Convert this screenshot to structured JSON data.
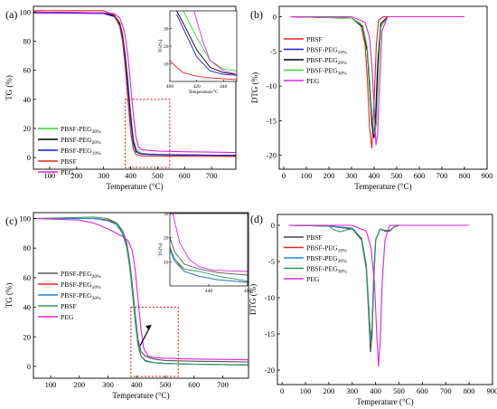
{
  "chart_data": [
    {
      "type": "line",
      "panel_label": "(a)",
      "xlabel": "Temperature (°C)",
      "ylabel": "TG (%)",
      "xlim": [
        40,
        790
      ],
      "ylim": [
        -8,
        104
      ],
      "xticks": [
        100,
        200,
        300,
        400,
        500,
        600,
        700
      ],
      "yticks": [
        0,
        20,
        40,
        60,
        80,
        100
      ],
      "legend_position": "left-middle",
      "series": [
        {
          "name": "PBSF-PEG30%",
          "color": "#33d633",
          "x": [
            40,
            300,
            340,
            360,
            370,
            380,
            390,
            400,
            410,
            420,
            430,
            440,
            460,
            500,
            600,
            790
          ],
          "y": [
            100,
            99.5,
            98,
            93,
            85,
            72,
            54,
            32,
            14,
            6,
            4,
            3,
            2.5,
            2.2,
            1.8,
            1.5
          ]
        },
        {
          "name": "PBSF-PEG20%",
          "color": "#000000",
          "x": [
            40,
            300,
            340,
            360,
            370,
            380,
            390,
            400,
            410,
            420,
            430,
            440,
            460,
            500,
            600,
            790
          ],
          "y": [
            100,
            99.5,
            97.5,
            92,
            84,
            70,
            50,
            28,
            11,
            4.5,
            3,
            2.5,
            2.2,
            2.0,
            1.8,
            1.5
          ]
        },
        {
          "name": "PBSF-PEG10%",
          "color": "#1a1ad9",
          "x": [
            40,
            300,
            340,
            360,
            370,
            380,
            390,
            400,
            410,
            420,
            430,
            440,
            460,
            500,
            600,
            790
          ],
          "y": [
            99.5,
            99,
            97,
            91,
            83,
            68,
            48,
            26,
            10,
            4,
            3,
            2.5,
            2.2,
            2.0,
            1.8,
            1.5
          ]
        },
        {
          "name": "PBSF",
          "color": "#e52222",
          "x": [
            40,
            300,
            340,
            360,
            370,
            380,
            390,
            400,
            410,
            420,
            440,
            460,
            500,
            600,
            790
          ],
          "y": [
            101,
            101,
            98,
            90,
            80,
            63,
            40,
            18,
            6,
            2,
            1.2,
            1.0,
            1.0,
            0.9,
            0.8
          ]
        },
        {
          "name": "PEG",
          "color": "#e020e0",
          "x": [
            40,
            300,
            340,
            360,
            370,
            380,
            390,
            400,
            410,
            420,
            430,
            440,
            460,
            500,
            600,
            790
          ],
          "y": [
            100,
            99.5,
            99,
            96,
            91,
            84,
            70,
            50,
            30,
            14,
            7,
            5.5,
            5,
            4.5,
            4,
            3.5
          ]
        }
      ],
      "inset": {
        "xlim": [
          400,
          450
        ],
        "ylim": [
          0,
          40
        ],
        "xticks": [
          400,
          420,
          440
        ],
        "yticks": [
          10,
          20,
          30
        ],
        "xlabel": "Temperature/°C",
        "ylabel": "TG(%)",
        "series": [
          {
            "name": "PBSF-PEG30%",
            "x": [
              410,
              420,
              430,
              440,
              450
            ],
            "y": [
              40,
              25,
              12,
              7,
              6
            ]
          },
          {
            "name": "PBSF-PEG20%",
            "x": [
              405,
              410,
              420,
              430,
              440,
              450
            ],
            "y": [
              40,
              33,
              18,
              8,
              5,
              4
            ]
          },
          {
            "name": "PBSF-PEG10%",
            "x": [
              405,
              410,
              420,
              430,
              440,
              450
            ],
            "y": [
              38,
              30,
              14,
              6,
              4,
              3.5
            ]
          },
          {
            "name": "PBSF",
            "x": [
              400,
              405,
              410,
              420,
              430,
              440,
              450
            ],
            "y": [
              12,
              8,
              5,
              3,
              2,
              1.5,
              1
            ]
          },
          {
            "name": "PEG",
            "x": [
              418,
              425,
              430,
              440,
              450
            ],
            "y": [
              40,
              22,
              12,
              6,
              4
            ]
          }
        ]
      }
    },
    {
      "type": "line",
      "panel_label": "(b)",
      "xlabel": "Temperature (°C)",
      "ylabel": "DTG (%)",
      "xlim": [
        -20,
        900
      ],
      "ylim": [
        -22,
        1.5
      ],
      "xticks": [
        0,
        100,
        200,
        300,
        400,
        500,
        600,
        700,
        800,
        900
      ],
      "yticks": [
        0,
        -5,
        -10,
        -15,
        -20
      ],
      "legend_position": "top-left",
      "series": [
        {
          "name": "PBSF",
          "color": "#e52222",
          "x": [
            30,
            300,
            340,
            360,
            370,
            380,
            390,
            400,
            410,
            420,
            440,
            500,
            800
          ],
          "y": [
            0,
            -0.2,
            -1,
            -4,
            -9,
            -16,
            -19,
            -12,
            -4,
            -0.5,
            0,
            0,
            0
          ]
        },
        {
          "name": "PBSF-PEG10%",
          "color": "#1a1ad9",
          "x": [
            30,
            300,
            350,
            370,
            380,
            390,
            398,
            405,
            415,
            430,
            460,
            500,
            800
          ],
          "y": [
            0,
            -0.2,
            -1.5,
            -5,
            -10,
            -15.5,
            -17.5,
            -15,
            -7,
            -1,
            0,
            0,
            0
          ]
        },
        {
          "name": "PBSF-PEG20%",
          "color": "#000000",
          "x": [
            30,
            300,
            350,
            370,
            380,
            390,
            400,
            408,
            418,
            430,
            460,
            500,
            800
          ],
          "y": [
            0,
            -0.2,
            -1.5,
            -5,
            -10,
            -15,
            -17.5,
            -15,
            -6,
            -1,
            0,
            0,
            0
          ]
        },
        {
          "name": "PBSF-PEG30%",
          "color": "#33d633",
          "x": [
            30,
            300,
            350,
            370,
            380,
            390,
            400,
            410,
            420,
            430,
            460,
            500,
            800
          ],
          "y": [
            0,
            -0.2,
            -1.3,
            -4.5,
            -9,
            -14,
            -17,
            -15.5,
            -7,
            -1.5,
            0,
            0,
            0
          ]
        },
        {
          "name": "PEG",
          "color": "#e020e0",
          "x": [
            30,
            300,
            360,
            380,
            390,
            400,
            408,
            415,
            425,
            435,
            460,
            500,
            800
          ],
          "y": [
            0,
            0,
            -0.8,
            -3,
            -7,
            -13,
            -18.5,
            -17,
            -9,
            -2,
            0,
            0,
            0
          ]
        }
      ]
    },
    {
      "type": "line",
      "panel_label": "(c)",
      "xlabel": "Temperature (°C)",
      "ylabel": "TG (%)",
      "xlim": [
        40,
        790
      ],
      "ylim": [
        -8,
        104
      ],
      "xticks": [
        100,
        200,
        300,
        400,
        500,
        600,
        700
      ],
      "yticks": [
        0,
        20,
        40,
        60,
        80,
        100
      ],
      "legend_position": "left-middle",
      "series": [
        {
          "name": "PBSF-PEG20%",
          "color": "#555555",
          "x": [
            40,
            250,
            300,
            330,
            350,
            365,
            375,
            385,
            395,
            405,
            415,
            430,
            460,
            500,
            600,
            790
          ],
          "y": [
            100,
            100,
            99,
            97,
            92,
            84,
            72,
            55,
            35,
            18,
            10,
            7,
            5,
            4,
            3.5,
            3
          ]
        },
        {
          "name": "PBSF-PEG10%",
          "color": "#e52222",
          "x": [
            40,
            250,
            300,
            330,
            350,
            365,
            375,
            385,
            395,
            405,
            415,
            430,
            460,
            500,
            600,
            790
          ],
          "y": [
            100,
            100,
            99,
            96.5,
            91,
            82,
            70,
            52,
            32,
            15,
            7,
            4,
            2.5,
            2,
            1.5,
            1
          ]
        },
        {
          "name": "PBSF-PEG30%",
          "color": "#1a8ae0",
          "x": [
            40,
            250,
            300,
            330,
            350,
            365,
            375,
            385,
            395,
            405,
            415,
            430,
            460,
            500,
            600,
            790
          ],
          "y": [
            100,
            100,
            98.5,
            96,
            90,
            81,
            68,
            50,
            30,
            14,
            7,
            4,
            2.5,
            2,
            1.5,
            1
          ]
        },
        {
          "name": "PBSF",
          "color": "#2e9a5a",
          "x": [
            40,
            250,
            300,
            330,
            350,
            365,
            375,
            385,
            395,
            405,
            415,
            430,
            460,
            500,
            600,
            790
          ],
          "y": [
            100,
            101,
            100,
            97,
            91,
            82,
            70,
            52,
            32,
            15,
            7,
            3.5,
            2.5,
            2,
            1.5,
            1
          ]
        },
        {
          "name": "PEG",
          "color": "#e020e0",
          "x": [
            40,
            200,
            250,
            300,
            330,
            350,
            370,
            385,
            395,
            405,
            415,
            425,
            440,
            460,
            500,
            600,
            790
          ],
          "y": [
            100,
            99,
            97,
            93,
            90,
            88,
            85,
            78,
            65,
            45,
            25,
            12,
            7,
            6,
            5.5,
            5,
            4.5
          ]
        }
      ],
      "inset": {
        "xlim": [
          400,
          480
        ],
        "ylim": [
          0,
          30
        ],
        "xticks": [
          440,
          480
        ],
        "yticks": [
          10,
          20,
          30
        ],
        "ylabel": "TG(%)",
        "series": [
          {
            "name": "PBSF-PEG20%",
            "x": [
              400,
              405,
              415,
              430,
              450,
              480
            ],
            "y": [
              20,
              14,
              9,
              7,
              5.5,
              4.5
            ]
          },
          {
            "name": "PBSF-PEG10%",
            "x": [
              400,
              405,
              415,
              430,
              450,
              480
            ],
            "y": [
              16,
              11,
              6,
              4,
              2.5,
              1.5
            ]
          },
          {
            "name": "PBSF-PEG30%",
            "x": [
              400,
              405,
              415,
              430,
              450,
              480
            ],
            "y": [
              15,
              10,
              6,
              4,
              2.5,
              1.5
            ]
          },
          {
            "name": "PBSF",
            "x": [
              400,
              405,
              415,
              430,
              450,
              480
            ],
            "y": [
              16,
              11,
              7,
              6,
              4,
              2
            ]
          },
          {
            "name": "PEG",
            "x": [
              403,
              410,
              420,
              430,
              445,
              480
            ],
            "y": [
              30,
              18,
              11,
              8,
              6.5,
              6
            ]
          }
        ]
      }
    },
    {
      "type": "line",
      "panel_label": "(d)",
      "xlabel": "Temperature (°C)",
      "ylabel": "DTG (%)",
      "xlim": [
        -20,
        900
      ],
      "ylim": [
        -22,
        1.5
      ],
      "xticks": [
        0,
        100,
        200,
        300,
        400,
        500,
        600,
        700,
        800,
        900
      ],
      "yticks": [
        0,
        -5,
        -10,
        -15,
        -20
      ],
      "legend_position": "top-left",
      "series": [
        {
          "name": "PBSF",
          "color": "#444444",
          "x": [
            30,
            200,
            300,
            340,
            360,
            370,
            378,
            385,
            392,
            400,
            420,
            440,
            460,
            480,
            500,
            800
          ],
          "y": [
            0,
            -0.1,
            -0.5,
            -2,
            -6,
            -12,
            -17.5,
            -15,
            -8,
            -2,
            -0.5,
            -0.8,
            -0.8,
            -0.2,
            0,
            0
          ]
        },
        {
          "name": "PBSF-PEG10%",
          "color": "#e52222",
          "x": [
            30,
            200,
            300,
            340,
            360,
            370,
            378,
            385,
            392,
            400,
            420,
            440,
            460,
            480,
            500,
            800
          ],
          "y": [
            0,
            -0.1,
            -0.4,
            -1.8,
            -5.5,
            -11,
            -15.5,
            -14,
            -7,
            -2,
            -0.5,
            -0.7,
            -0.7,
            -0.2,
            0,
            0
          ]
        },
        {
          "name": "PBSF-PEG20%",
          "color": "#1a8ae0",
          "x": [
            30,
            200,
            300,
            340,
            360,
            370,
            378,
            385,
            392,
            400,
            420,
            440,
            460,
            480,
            500,
            800
          ],
          "y": [
            0,
            -0.1,
            -0.4,
            -1.8,
            -5.5,
            -11,
            -16,
            -14,
            -7,
            -2,
            -0.5,
            -0.7,
            -0.7,
            -0.2,
            0,
            0
          ]
        },
        {
          "name": "PBSF-PEG30%",
          "color": "#2e9a5a",
          "x": [
            30,
            200,
            220,
            250,
            280,
            300,
            340,
            360,
            370,
            378,
            385,
            392,
            400,
            420,
            440,
            460,
            480,
            500,
            800
          ],
          "y": [
            0,
            -0.1,
            -0.6,
            -0.9,
            -0.6,
            -0.5,
            -1.8,
            -5.5,
            -11,
            -15.5,
            -14,
            -7,
            -2,
            -0.5,
            -0.7,
            -0.7,
            -0.2,
            0,
            0
          ]
        },
        {
          "name": "PEG",
          "color": "#e020e0",
          "x": [
            30,
            300,
            360,
            380,
            395,
            405,
            412,
            420,
            428,
            440,
            460,
            500,
            800
          ],
          "y": [
            0,
            0,
            -0.8,
            -3,
            -8,
            -15,
            -19.5,
            -16,
            -8,
            -2,
            0,
            0,
            0
          ]
        }
      ]
    }
  ]
}
